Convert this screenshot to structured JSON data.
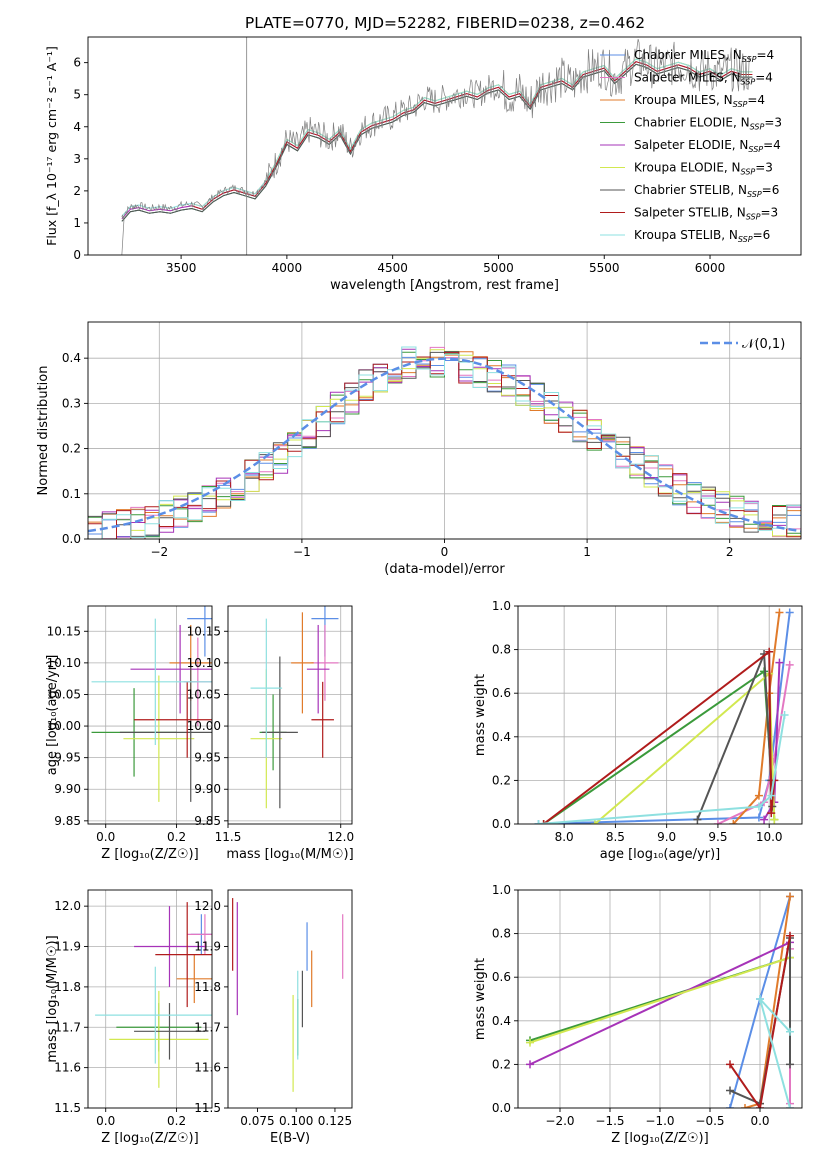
{
  "figure": {
    "title": "PLATE=0770, MJD=52282, FIBERID=0238, z=0.462"
  },
  "models": [
    {
      "name": "Chabrier MILES",
      "n_ssp": 4,
      "color": "#5b8ee6"
    },
    {
      "name": "Salpeter MILES",
      "n_ssp": 4,
      "color": "#e377c2"
    },
    {
      "name": "Kroupa MILES",
      "n_ssp": 4,
      "color": "#e07b2b"
    },
    {
      "name": "Chabrier ELODIE",
      "n_ssp": 3,
      "color": "#3b9a3b"
    },
    {
      "name": "Salpeter ELODIE",
      "n_ssp": 4,
      "color": "#a633b8"
    },
    {
      "name": "Kroupa ELODIE",
      "n_ssp": 3,
      "color": "#d2e850"
    },
    {
      "name": "Chabrier STELIB",
      "n_ssp": 6,
      "color": "#555555"
    },
    {
      "name": "Salpeter STELIB",
      "n_ssp": 3,
      "color": "#b01c1c"
    },
    {
      "name": "Kroupa STELIB",
      "n_ssp": 6,
      "color": "#8ee0e0"
    }
  ],
  "chart_data": [
    {
      "id": "spectrum",
      "type": "line",
      "title": "PLATE=0770, MJD=52282, FIBERID=0238, z=0.462",
      "xlabel": "wavelength [Angstrom, rest frame]",
      "ylabel": "Flux [f_λ 10⁻¹⁷ erg cm⁻² s⁻¹ A⁻¹]",
      "xlim": [
        3060,
        6430
      ],
      "ylim": [
        0,
        6.8
      ],
      "xticks": [
        3500,
        4000,
        4500,
        5000,
        5500,
        6000
      ],
      "yticks": [
        0,
        1,
        2,
        3,
        4,
        5,
        6
      ],
      "grid": false,
      "legend": "top-right",
      "series": [
        {
          "name": "data",
          "x": [
            3220,
            3260,
            3300,
            3350,
            3400,
            3450,
            3500,
            3550,
            3600,
            3650,
            3700,
            3750,
            3800,
            3850,
            3900,
            3950,
            4000,
            4050,
            4100,
            4150,
            4200,
            4250,
            4300,
            4350,
            4400,
            4450,
            4500,
            4550,
            4600,
            4650,
            4700,
            4750,
            4800,
            4850,
            4900,
            4950,
            5000,
            5050,
            5100,
            5150,
            5200,
            5250,
            5300,
            5350,
            5400,
            5450,
            5500,
            5550,
            5600,
            5650,
            5700,
            5750,
            5800,
            5850,
            5900,
            5950,
            6000,
            6050,
            6100,
            6150,
            6200
          ],
          "y": [
            1.2,
            1.5,
            1.55,
            1.45,
            1.5,
            1.45,
            1.55,
            1.6,
            1.5,
            1.8,
            2.0,
            2.1,
            2.0,
            1.9,
            2.3,
            2.9,
            3.6,
            3.4,
            3.9,
            3.8,
            3.6,
            3.9,
            3.3,
            3.9,
            4.1,
            4.2,
            4.3,
            4.5,
            4.6,
            4.9,
            4.8,
            4.9,
            5.0,
            5.1,
            5.0,
            5.2,
            5.3,
            5.0,
            5.1,
            4.7,
            5.3,
            5.4,
            5.5,
            5.3,
            5.7,
            5.8,
            5.9,
            5.5,
            5.8,
            6.1,
            6.0,
            5.8,
            5.9,
            6.0,
            5.9,
            5.7,
            5.8,
            5.6,
            5.8,
            5.7,
            5.7
          ]
        }
      ]
    },
    {
      "id": "residuals",
      "type": "line",
      "xlabel": "(data-model)/error",
      "ylabel": "Normed distribution",
      "xlim": [
        -2.5,
        2.5
      ],
      "ylim": [
        0,
        0.48
      ],
      "xticks": [
        -2,
        -1,
        0,
        1,
        2
      ],
      "yticks": [
        0.0,
        0.1,
        0.2,
        0.3,
        0.4
      ],
      "grid": true,
      "legend": "top-right",
      "reference": {
        "label": "𝒩(0,1)",
        "color": "#5b8ee6"
      },
      "bins": [
        -2.5,
        -2.4,
        -2.3,
        -2.2,
        -2.1,
        -2.0,
        -1.9,
        -1.8,
        -1.7,
        -1.6,
        -1.5,
        -1.4,
        -1.3,
        -1.2,
        -1.1,
        -1.0,
        -0.9,
        -0.8,
        -0.7,
        -0.6,
        -0.5,
        -0.4,
        -0.3,
        -0.2,
        -0.1,
        0.0,
        0.1,
        0.2,
        0.3,
        0.4,
        0.5,
        0.6,
        0.7,
        0.8,
        0.9,
        1.0,
        1.1,
        1.2,
        1.3,
        1.4,
        1.5,
        1.6,
        1.7,
        1.8,
        1.9,
        2.0,
        2.1,
        2.2,
        2.3,
        2.4
      ],
      "hist_base": [
        0.02,
        0.025,
        0.03,
        0.035,
        0.04,
        0.05,
        0.06,
        0.07,
        0.085,
        0.1,
        0.12,
        0.14,
        0.16,
        0.18,
        0.2,
        0.23,
        0.26,
        0.29,
        0.31,
        0.34,
        0.36,
        0.38,
        0.39,
        0.39,
        0.39,
        0.38,
        0.38,
        0.37,
        0.36,
        0.35,
        0.33,
        0.31,
        0.29,
        0.27,
        0.25,
        0.23,
        0.21,
        0.19,
        0.17,
        0.15,
        0.13,
        0.11,
        0.09,
        0.08,
        0.07,
        0.06,
        0.05,
        0.045,
        0.04,
        0.04
      ]
    },
    {
      "id": "age-vs-Z",
      "type": "scatter",
      "xlabel": "Z [log₁₀(Z/Z☉)]",
      "ylabel": "age [log₁₀(age/yr)]",
      "xlim": [
        -0.05,
        0.3
      ],
      "ylim": [
        9.845,
        10.19
      ],
      "xticks": [
        0.0,
        0.2
      ],
      "yticks": [
        9.85,
        9.9,
        9.95,
        10.0,
        10.05,
        10.1,
        10.15
      ],
      "grid": true,
      "points": [
        {
          "x": 0.28,
          "y": 10.17,
          "xerr": 0.05,
          "yerr": 0.06
        },
        {
          "x": 0.26,
          "y": 10.07,
          "xerr": 0.04,
          "yerr": 0.07
        },
        {
          "x": 0.24,
          "y": 10.1,
          "xerr": 0.06,
          "yerr": 0.06
        },
        {
          "x": 0.08,
          "y": 9.99,
          "xerr": 0.12,
          "yerr": 0.07
        },
        {
          "x": 0.21,
          "y": 10.09,
          "xerr": 0.14,
          "yerr": 0.07
        },
        {
          "x": 0.15,
          "y": 9.98,
          "xerr": 0.1,
          "yerr": 0.1
        },
        {
          "x": 0.24,
          "y": 9.99,
          "xerr": 0.2,
          "yerr": 0.11
        },
        {
          "x": 0.23,
          "y": 10.01,
          "xerr": 0.15,
          "yerr": 0.06
        },
        {
          "x": 0.14,
          "y": 10.07,
          "xerr": 0.18,
          "yerr": 0.1
        }
      ]
    },
    {
      "id": "age-vs-mass",
      "type": "scatter",
      "xlabel": "mass [log₁₀(M/M☉)]",
      "ylabel": "",
      "xlim": [
        11.5,
        12.05
      ],
      "ylim": [
        9.845,
        10.19
      ],
      "xticks": [
        11.5,
        12.0
      ],
      "yticks": [
        9.85,
        9.9,
        9.95,
        10.0,
        10.05,
        10.1,
        10.15
      ],
      "grid": true,
      "points": [
        {
          "x": 11.93,
          "y": 10.17,
          "xerr": 0.06,
          "yerr": 0.06
        },
        {
          "x": 11.93,
          "y": 10.1,
          "xerr": 0.06,
          "yerr": 0.06
        },
        {
          "x": 11.83,
          "y": 10.1,
          "xerr": 0.05,
          "yerr": 0.08
        },
        {
          "x": 11.7,
          "y": 9.99,
          "xerr": 0.06,
          "yerr": 0.06
        },
        {
          "x": 11.9,
          "y": 10.09,
          "xerr": 0.05,
          "yerr": 0.07
        },
        {
          "x": 11.67,
          "y": 9.98,
          "xerr": 0.07,
          "yerr": 0.11
        },
        {
          "x": 11.73,
          "y": 9.99,
          "xerr": 0.08,
          "yerr": 0.12
        },
        {
          "x": 11.92,
          "y": 10.01,
          "xerr": 0.05,
          "yerr": 0.06
        },
        {
          "x": 11.67,
          "y": 10.06,
          "xerr": 0.07,
          "yerr": 0.11
        }
      ]
    },
    {
      "id": "massweight-vs-age",
      "type": "line",
      "xlabel": "age [log₁₀(age/yr)]",
      "ylabel": "mass weight",
      "xlim": [
        7.55,
        10.32
      ],
      "ylim": [
        0,
        1.0
      ],
      "xticks": [
        8.0,
        8.5,
        9.0,
        9.5,
        10.0
      ],
      "yticks": [
        0.0,
        0.2,
        0.4,
        0.6,
        0.8,
        1.0
      ],
      "grid": true,
      "series": [
        {
          "x": [
            7.75,
            9.9,
            10.0,
            10.2
          ],
          "y": [
            0.0,
            0.03,
            0.2,
            0.97
          ]
        },
        {
          "x": [
            9.5,
            9.95,
            10.05,
            10.2
          ],
          "y": [
            0.0,
            0.1,
            0.3,
            0.73
          ]
        },
        {
          "x": [
            9.65,
            9.9,
            10.0,
            10.1
          ],
          "y": [
            0.0,
            0.13,
            0.6,
            0.97
          ]
        },
        {
          "x": [
            7.8,
            9.95,
            10.05
          ],
          "y": [
            0.0,
            0.7,
            0.02
          ]
        },
        {
          "x": [
            9.95,
            10.05,
            10.1
          ],
          "y": [
            0.02,
            0.1,
            0.74
          ]
        },
        {
          "x": [
            8.3,
            10.0,
            10.05
          ],
          "y": [
            0.0,
            0.69,
            0.02
          ]
        },
        {
          "x": [
            9.3,
            9.95,
            10.02,
            10.03
          ],
          "y": [
            0.02,
            0.78,
            0.2,
            0.08
          ]
        },
        {
          "x": [
            7.8,
            10.0,
            10.02,
            10.05
          ],
          "y": [
            0.0,
            0.79,
            0.05,
            0.2
          ]
        },
        {
          "x": [
            7.75,
            9.9,
            10.02,
            10.15
          ],
          "y": [
            0.0,
            0.08,
            0.13,
            0.5
          ]
        }
      ]
    },
    {
      "id": "mass-vs-Z",
      "type": "scatter",
      "xlabel": "Z [log₁₀(Z/Z☉)]",
      "ylabel": "mass [log₁₀(M/M☉)]",
      "xlim": [
        -0.05,
        0.3
      ],
      "ylim": [
        11.5,
        12.04
      ],
      "xticks": [
        0.0,
        0.2
      ],
      "yticks": [
        11.5,
        11.6,
        11.7,
        11.8,
        11.9,
        12.0
      ],
      "grid": true,
      "points": [
        {
          "x": 0.27,
          "y": 11.93,
          "xerr": 0.03,
          "yerr": 0.05
        },
        {
          "x": 0.28,
          "y": 11.93,
          "xerr": 0.05,
          "yerr": 0.05
        },
        {
          "x": 0.25,
          "y": 11.82,
          "xerr": 0.05,
          "yerr": 0.06
        },
        {
          "x": 0.15,
          "y": 11.7,
          "xerr": 0.12,
          "yerr": 0.06
        },
        {
          "x": 0.18,
          "y": 11.9,
          "xerr": 0.1,
          "yerr": 0.1
        },
        {
          "x": 0.15,
          "y": 11.67,
          "xerr": 0.14,
          "yerr": 0.12
        },
        {
          "x": 0.18,
          "y": 11.69,
          "xerr": 0.1,
          "yerr": 0.07
        },
        {
          "x": 0.23,
          "y": 11.88,
          "xerr": 0.09,
          "yerr": 0.13
        },
        {
          "x": 0.14,
          "y": 11.73,
          "xerr": 0.17,
          "yerr": 0.12
        }
      ]
    },
    {
      "id": "mass-vs-EBV",
      "type": "scatter",
      "xlabel": "E(B-V)",
      "ylabel": "",
      "xlim": [
        0.056,
        0.136
      ],
      "ylim": [
        11.5,
        12.04
      ],
      "xticks": [
        0.075,
        0.1,
        0.125
      ],
      "xtick_labels": [
        "0.075",
        "0.100",
        "0.125"
      ],
      "yticks": [
        11.5,
        11.6,
        11.7,
        11.8,
        11.9,
        12.0
      ],
      "grid": false,
      "points": [
        {
          "x": 0.107,
          "y": 11.9,
          "yerr": 0.06
        },
        {
          "x": 0.13,
          "y": 11.9,
          "yerr": 0.08
        },
        {
          "x": 0.11,
          "y": 11.82,
          "yerr": 0.07
        },
        {
          "x": 0.101,
          "y": 11.7,
          "yerr": 0.07
        },
        {
          "x": 0.062,
          "y": 11.87,
          "yerr": 0.14
        },
        {
          "x": 0.098,
          "y": 11.66,
          "yerr": 0.12
        },
        {
          "x": 0.104,
          "y": 11.77,
          "yerr": 0.07
        },
        {
          "x": 0.059,
          "y": 11.93,
          "yerr": 0.09
        },
        {
          "x": 0.101,
          "y": 11.73,
          "yerr": 0.11
        }
      ]
    },
    {
      "id": "massweight-vs-Z",
      "type": "line",
      "xlabel": "Z [log₁₀(Z/Z☉)]",
      "ylabel": "mass weight",
      "xlim": [
        -2.42,
        0.42
      ],
      "ylim": [
        0,
        1.0
      ],
      "xticks": [
        -2.0,
        -1.5,
        -1.0,
        -0.5,
        0.0
      ],
      "yticks": [
        0.0,
        0.2,
        0.4,
        0.6,
        0.8,
        1.0
      ],
      "grid": true,
      "series": [
        {
          "x": [
            -0.3,
            0.0,
            0.3
          ],
          "y": [
            0.0,
            0.5,
            0.97
          ]
        },
        {
          "x": [
            0.3,
            0.3,
            0.3
          ],
          "y": [
            0.73,
            0.02,
            0.0
          ]
        },
        {
          "x": [
            -0.15,
            0.0,
            0.3
          ],
          "y": [
            0.0,
            0.02,
            0.97
          ]
        },
        {
          "x": [
            -2.3,
            0.3
          ],
          "y": [
            0.31,
            0.69
          ]
        },
        {
          "x": [
            -2.3,
            0.3
          ],
          "y": [
            0.2,
            0.76
          ]
        },
        {
          "x": [
            -2.3,
            0.3
          ],
          "y": [
            0.3,
            0.69
          ]
        },
        {
          "x": [
            -0.3,
            0.0,
            0.3,
            0.3
          ],
          "y": [
            0.08,
            0.02,
            0.78,
            0.2
          ]
        },
        {
          "x": [
            -0.3,
            0.0,
            0.3
          ],
          "y": [
            0.2,
            0.0,
            0.79
          ]
        },
        {
          "x": [
            0.3,
            0.0,
            0.3
          ],
          "y": [
            0.0,
            0.5,
            0.35
          ]
        }
      ]
    }
  ],
  "text": {
    "spec_ylabel": "Flux [f",
    "legend_norm": "𝒩(0,1)"
  }
}
